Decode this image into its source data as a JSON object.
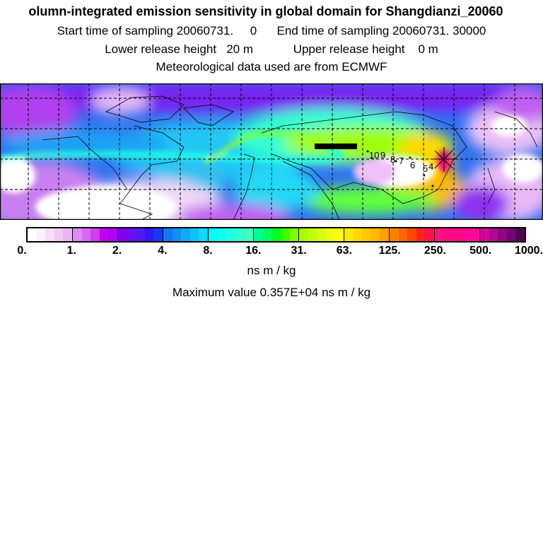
{
  "header": {
    "title": "olumn-integrated emission sensitivity in global domain for Shangdianzi_20060",
    "sampling": {
      "start_label": "Start time of sampling",
      "start_value": "20060731.",
      "start_hour": "0",
      "end_label": "End time of sampling",
      "end_value": "20060731. 30000"
    },
    "release": {
      "lower_label": "Lower release height",
      "lower_value": "20 m",
      "upper_label": "Upper release height",
      "upper_value": "0 m"
    },
    "met_data": "Meteorological data used are from ECMWF"
  },
  "map": {
    "station": "Shangdianzi",
    "trajectory_labels": [
      "10",
      "9",
      "8",
      "7",
      "6",
      "5",
      "4"
    ]
  },
  "colorbar": {
    "ticks": [
      "0.",
      "1.",
      "2.",
      "4.",
      "8.",
      "16.",
      "31.",
      "63.",
      "125.",
      "250.",
      "500.",
      "1000."
    ],
    "segments": [
      [
        "#ffffff",
        "#fbeefb",
        "#f6ddf6",
        "#f1c8f3",
        "#ecb4f2"
      ],
      [
        "#e08af0",
        "#d868f0",
        "#cc3ff0",
        "#c000f0",
        "#b000f0"
      ],
      [
        "#8000f0",
        "#6a10f5",
        "#5018f5",
        "#3018f5",
        "#1838f5"
      ],
      [
        "#1078f5",
        "#1090f5",
        "#10a8f5",
        "#10c0f5",
        "#10d8f5"
      ],
      [
        "#00ffff",
        "#10fff0",
        "#20ffe0",
        "#30ffd0",
        "#40ffc0"
      ],
      [
        "#00ff90",
        "#00ff60",
        "#00ff20",
        "#40ff00",
        "#80ff00"
      ],
      [
        "#a8ff00",
        "#c0ff10",
        "#d8ff10",
        "#ecff10",
        "#ffff00"
      ],
      [
        "#ffe800",
        "#ffd800",
        "#ffc800",
        "#ffb800",
        "#ffa000"
      ],
      [
        "#ff8000",
        "#ff6800",
        "#ff4800",
        "#ff2020",
        "#ff1050"
      ],
      [
        "#ff1080",
        "#ff0a80",
        "#ff0888",
        "#ff0890",
        "#ff0898"
      ],
      [
        "#d0089a",
        "#b00890",
        "#900880",
        "#700870",
        "#500850"
      ]
    ],
    "unit": "ns m / kg",
    "max_label": "Maximum value  0.357E+04 ns m / kg"
  }
}
